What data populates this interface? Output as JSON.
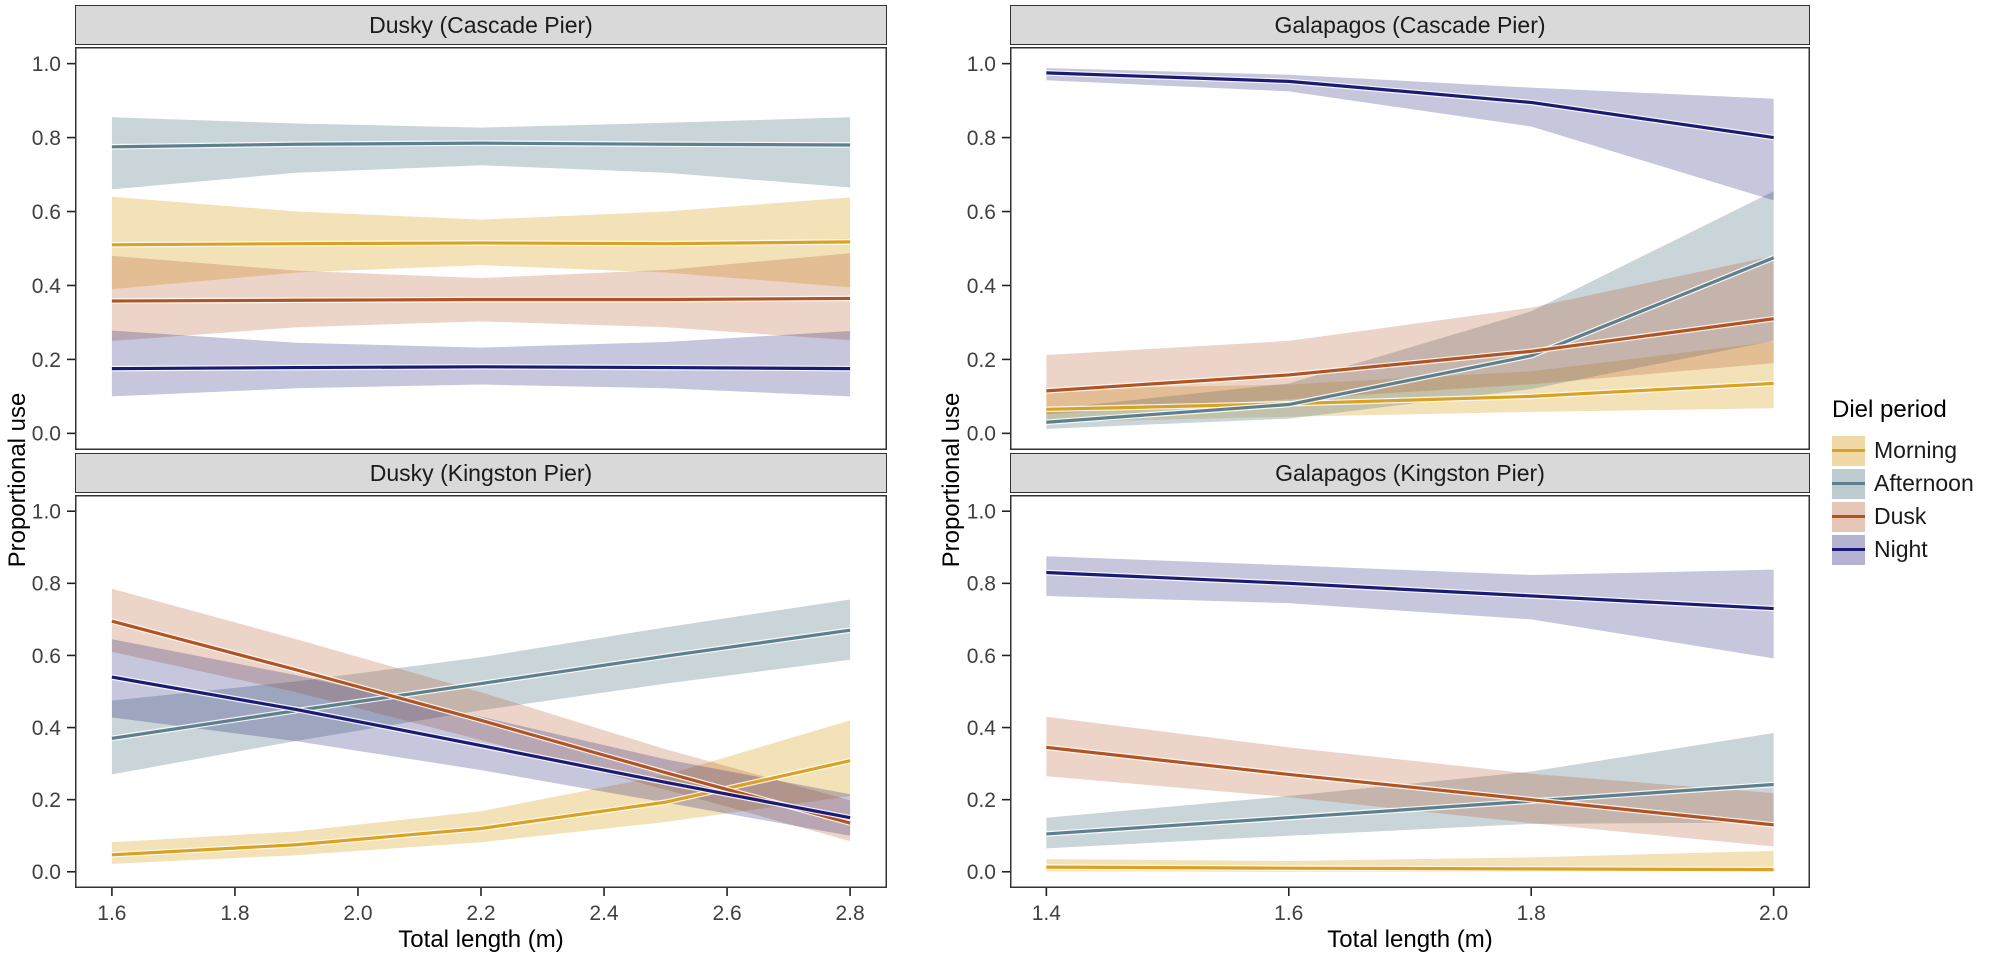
{
  "axes": {
    "x_label": "Total length (m)",
    "y_label": "Proportional use"
  },
  "legend": {
    "title": "Diel period",
    "entries": [
      {
        "label": "Morning"
      },
      {
        "label": "Afternoon"
      },
      {
        "label": "Dusk"
      },
      {
        "label": "Night"
      }
    ]
  },
  "colors": {
    "Morning": {
      "line": "#DBA122",
      "fill_opacity": 0.32
    },
    "Afternoon": {
      "line": "#5F7F8D",
      "fill_opacity": 0.33
    },
    "Dusk": {
      "line": "#B25322",
      "fill_opacity": 0.25
    },
    "Night": {
      "line": "#1B1B75",
      "fill_opacity": 0.25
    }
  },
  "chart_data": [
    {
      "type": "line",
      "title": "Dusky (Cascade Pier)",
      "xlabel": "Total length (m)",
      "ylabel": "Proportional use",
      "x": [
        1.6,
        1.9,
        2.2,
        2.5,
        2.8
      ],
      "xlim": [
        1.54,
        2.86
      ],
      "xticks": [
        1.6,
        1.8,
        2.0,
        2.2,
        2.4,
        2.6,
        2.8
      ],
      "ylim": [
        -0.045,
        1.045
      ],
      "yticks": [
        0.0,
        0.2,
        0.4,
        0.6,
        0.8,
        1.0
      ],
      "show_x_axis": false,
      "series": [
        {
          "name": "Morning",
          "values": [
            0.51,
            0.513,
            0.515,
            0.513,
            0.518
          ],
          "lower": [
            0.39,
            0.435,
            0.455,
            0.435,
            0.395
          ],
          "upper": [
            0.64,
            0.6,
            0.578,
            0.6,
            0.638
          ]
        },
        {
          "name": "Afternoon",
          "values": [
            0.775,
            0.782,
            0.785,
            0.782,
            0.78
          ],
          "lower": [
            0.66,
            0.705,
            0.725,
            0.705,
            0.665
          ],
          "upper": [
            0.855,
            0.838,
            0.827,
            0.84,
            0.855
          ]
        },
        {
          "name": "Dusk",
          "values": [
            0.358,
            0.36,
            0.362,
            0.362,
            0.365
          ],
          "lower": [
            0.25,
            0.287,
            0.303,
            0.287,
            0.252
          ],
          "upper": [
            0.48,
            0.44,
            0.42,
            0.442,
            0.487
          ]
        },
        {
          "name": "Night",
          "values": [
            0.175,
            0.178,
            0.18,
            0.178,
            0.175
          ],
          "lower": [
            0.1,
            0.122,
            0.132,
            0.122,
            0.1
          ],
          "upper": [
            0.278,
            0.245,
            0.232,
            0.247,
            0.277
          ]
        }
      ]
    },
    {
      "type": "line",
      "title": "Galapagos (Cascade Pier)",
      "xlabel": "Total length (m)",
      "ylabel": "Proportional use",
      "x": [
        1.4,
        1.6,
        1.8,
        2.0
      ],
      "xlim": [
        1.37,
        2.03
      ],
      "xticks": [
        1.4,
        1.6,
        1.8,
        2.0
      ],
      "ylim": [
        -0.045,
        1.045
      ],
      "yticks": [
        0.0,
        0.2,
        0.4,
        0.6,
        0.8,
        1.0
      ],
      "show_x_axis": false,
      "series": [
        {
          "name": "Morning",
          "values": [
            0.065,
            0.08,
            0.1,
            0.135
          ],
          "lower": [
            0.03,
            0.045,
            0.058,
            0.068
          ],
          "upper": [
            0.12,
            0.132,
            0.168,
            0.248
          ]
        },
        {
          "name": "Afternoon",
          "values": [
            0.03,
            0.078,
            0.21,
            0.475
          ],
          "lower": [
            0.012,
            0.04,
            0.12,
            0.25
          ],
          "upper": [
            0.065,
            0.135,
            0.33,
            0.655
          ]
        },
        {
          "name": "Dusk",
          "values": [
            0.115,
            0.158,
            0.222,
            0.31
          ],
          "lower": [
            0.052,
            0.092,
            0.133,
            0.19
          ],
          "upper": [
            0.212,
            0.25,
            0.34,
            0.48
          ]
        },
        {
          "name": "Night",
          "values": [
            0.975,
            0.952,
            0.895,
            0.8
          ],
          "lower": [
            0.955,
            0.925,
            0.83,
            0.63
          ],
          "upper": [
            0.988,
            0.97,
            0.935,
            0.905
          ]
        }
      ]
    },
    {
      "type": "line",
      "title": "Dusky (Kingston Pier)",
      "xlabel": "Total length (m)",
      "ylabel": "Proportional use",
      "x": [
        1.6,
        1.9,
        2.2,
        2.5,
        2.8
      ],
      "xlim": [
        1.54,
        2.86
      ],
      "xticks": [
        1.6,
        1.8,
        2.0,
        2.2,
        2.4,
        2.6,
        2.8
      ],
      "ylim": [
        -0.045,
        1.045
      ],
      "yticks": [
        0.0,
        0.2,
        0.4,
        0.6,
        0.8,
        1.0
      ],
      "show_x_axis": true,
      "series": [
        {
          "name": "Morning",
          "values": [
            0.047,
            0.075,
            0.12,
            0.193,
            0.308
          ],
          "lower": [
            0.022,
            0.046,
            0.082,
            0.138,
            0.21
          ],
          "upper": [
            0.082,
            0.112,
            0.168,
            0.268,
            0.42
          ]
        },
        {
          "name": "Afternoon",
          "values": [
            0.37,
            0.447,
            0.522,
            0.598,
            0.67
          ],
          "lower": [
            0.27,
            0.363,
            0.448,
            0.522,
            0.588
          ],
          "upper": [
            0.475,
            0.528,
            0.595,
            0.678,
            0.755
          ]
        },
        {
          "name": "Dusk",
          "values": [
            0.695,
            0.56,
            0.42,
            0.275,
            0.135
          ],
          "lower": [
            0.61,
            0.498,
            0.365,
            0.228,
            0.085
          ],
          "upper": [
            0.785,
            0.645,
            0.498,
            0.34,
            0.198
          ]
        },
        {
          "name": "Night",
          "values": [
            0.54,
            0.45,
            0.35,
            0.248,
            0.15
          ],
          "lower": [
            0.428,
            0.362,
            0.282,
            0.192,
            0.1
          ],
          "upper": [
            0.645,
            0.545,
            0.43,
            0.312,
            0.215
          ]
        }
      ]
    },
    {
      "type": "line",
      "title": "Galapagos (Kingston Pier)",
      "xlabel": "Total length (m)",
      "ylabel": "Proportional use",
      "x": [
        1.4,
        1.6,
        1.8,
        2.0
      ],
      "xlim": [
        1.37,
        2.03
      ],
      "xticks": [
        1.4,
        1.6,
        1.8,
        2.0
      ],
      "ylim": [
        -0.045,
        1.045
      ],
      "yticks": [
        0.0,
        0.2,
        0.4,
        0.6,
        0.8,
        1.0
      ],
      "show_x_axis": true,
      "series": [
        {
          "name": "Morning",
          "values": [
            0.013,
            0.01,
            0.008,
            0.006
          ],
          "lower": [
            0.001,
            0.0,
            0.0,
            0.0
          ],
          "upper": [
            0.035,
            0.03,
            0.04,
            0.058
          ]
        },
        {
          "name": "Afternoon",
          "values": [
            0.105,
            0.15,
            0.196,
            0.242
          ],
          "lower": [
            0.065,
            0.1,
            0.133,
            0.137
          ],
          "upper": [
            0.15,
            0.21,
            0.278,
            0.385
          ]
        },
        {
          "name": "Dusk",
          "values": [
            0.345,
            0.27,
            0.2,
            0.13
          ],
          "lower": [
            0.265,
            0.207,
            0.135,
            0.07
          ],
          "upper": [
            0.43,
            0.345,
            0.272,
            0.218
          ]
        },
        {
          "name": "Night",
          "values": [
            0.83,
            0.8,
            0.765,
            0.73
          ],
          "lower": [
            0.765,
            0.745,
            0.7,
            0.592
          ],
          "upper": [
            0.875,
            0.85,
            0.823,
            0.838
          ]
        }
      ]
    }
  ]
}
